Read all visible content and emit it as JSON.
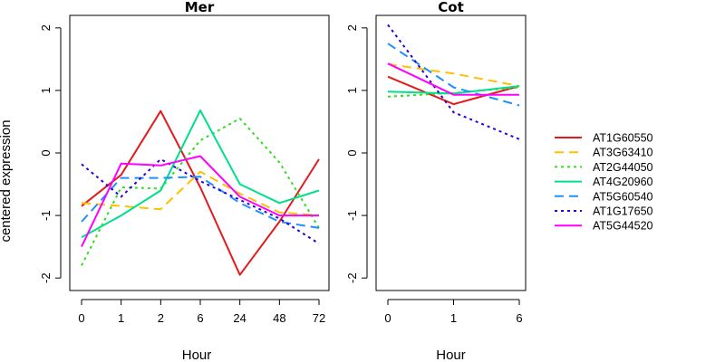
{
  "chart_data": {
    "type": "line",
    "ylabel": "centered expression",
    "xlabel": "Hour",
    "ylim": [
      -2.2,
      2.2
    ],
    "yticks": [
      -2,
      -1,
      0,
      1,
      2
    ],
    "grid": false,
    "legend_position": "right",
    "series_styles": [
      {
        "name": "AT1G60550",
        "color": "#e41a1c",
        "dash": "solid"
      },
      {
        "name": "AT3G63410",
        "color": "#ffc000",
        "dash": "dashed"
      },
      {
        "name": "AT2G44050",
        "color": "#33dd22",
        "dash": "dotted"
      },
      {
        "name": "AT4G20960",
        "color": "#00e08a",
        "dash": "solid"
      },
      {
        "name": "AT5G60540",
        "color": "#1e90ff",
        "dash": "dashed"
      },
      {
        "name": "AT1G17650",
        "color": "#2a00d5",
        "dash": "dotted"
      },
      {
        "name": "AT5G44520",
        "color": "#ff00ff",
        "dash": "solid"
      }
    ],
    "panels": [
      {
        "title": "Mer",
        "categories": [
          "0",
          "1",
          "2",
          "6",
          "24",
          "48",
          "72"
        ],
        "series": [
          {
            "name": "AT1G60550",
            "values": [
              -0.85,
              -0.35,
              0.67,
              -0.55,
              -1.95,
              -1.1,
              -0.1
            ]
          },
          {
            "name": "AT3G63410",
            "values": [
              -0.8,
              -0.85,
              -0.9,
              -0.3,
              -0.65,
              -0.95,
              -1.0
            ]
          },
          {
            "name": "AT2G44050",
            "values": [
              -1.8,
              -0.55,
              -0.57,
              0.2,
              0.55,
              -0.15,
              -1.2
            ]
          },
          {
            "name": "AT4G20960",
            "values": [
              -1.35,
              -1.0,
              -0.6,
              0.68,
              -0.5,
              -0.8,
              -0.6
            ]
          },
          {
            "name": "AT5G60540",
            "values": [
              -1.1,
              -0.4,
              -0.4,
              -0.38,
              -0.8,
              -1.1,
              -1.2
            ]
          },
          {
            "name": "AT1G17650",
            "values": [
              -0.18,
              -0.7,
              -0.1,
              -0.45,
              -0.75,
              -1.05,
              -1.45
            ]
          },
          {
            "name": "AT5G44520",
            "values": [
              -1.5,
              -0.17,
              -0.2,
              -0.05,
              -0.7,
              -1.0,
              -1.0
            ]
          }
        ]
      },
      {
        "title": "Cot",
        "categories": [
          "0",
          "1",
          "6"
        ],
        "series": [
          {
            "name": "AT1G60550",
            "values": [
              1.22,
              0.78,
              1.07
            ]
          },
          {
            "name": "AT3G63410",
            "values": [
              1.42,
              1.27,
              1.07
            ]
          },
          {
            "name": "AT2G44050",
            "values": [
              0.9,
              0.96,
              1.05
            ]
          },
          {
            "name": "AT4G20960",
            "values": [
              0.98,
              0.95,
              1.07
            ]
          },
          {
            "name": "AT5G60540",
            "values": [
              1.75,
              1.05,
              0.76
            ]
          },
          {
            "name": "AT1G17650",
            "values": [
              2.05,
              0.65,
              0.22
            ]
          },
          {
            "name": "AT5G44520",
            "values": [
              1.43,
              0.93,
              0.93
            ]
          }
        ]
      }
    ]
  }
}
